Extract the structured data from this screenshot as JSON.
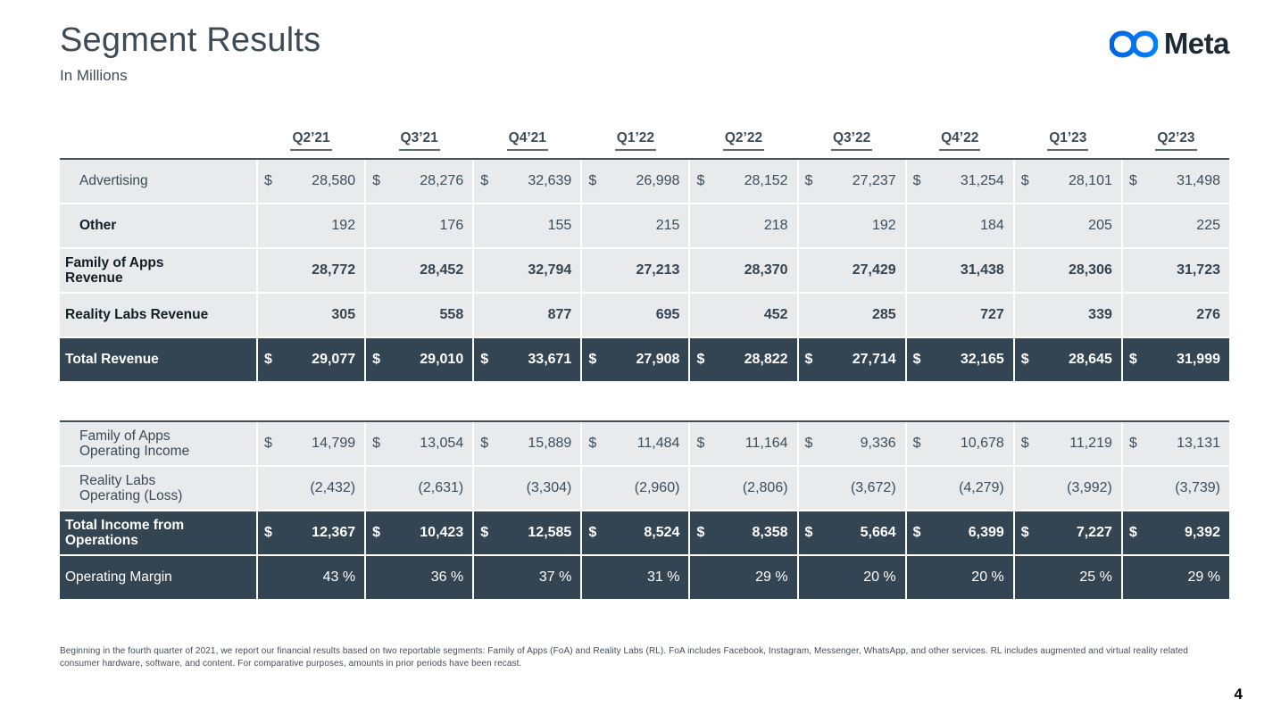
{
  "header": {
    "title": "Segment Results",
    "subtitle": "In Millions",
    "logo_text": "Meta"
  },
  "colors": {
    "dark_row_bg": "#334452",
    "light_row_bg": "#e8eaec",
    "slate_text": "#3c4b57",
    "logo_blue_start": "#0064e0",
    "logo_blue_end": "#0082fb",
    "wordmark": "#1c2b33"
  },
  "table": {
    "dollar_sign": "$",
    "quarters": [
      "Q2’21",
      "Q3’21",
      "Q4’21",
      "Q1’22",
      "Q2’22",
      "Q3’22",
      "Q4’22",
      "Q1’23",
      "Q2’23"
    ],
    "sections": [
      {
        "rows": [
          {
            "label": "Advertising",
            "style": "light",
            "indent": true,
            "label_bold": false,
            "values_bold": false,
            "dollar": true,
            "values": [
              "28,580",
              "28,276",
              "32,639",
              "26,998",
              "28,152",
              "27,237",
              "31,254",
              "28,101",
              "31,498"
            ]
          },
          {
            "label": "Other",
            "style": "light",
            "indent": true,
            "label_bold": true,
            "values_bold": false,
            "dollar": false,
            "values": [
              "192",
              "176",
              "155",
              "215",
              "218",
              "192",
              "184",
              "205",
              "225"
            ]
          },
          {
            "label": "Family of Apps\nRevenue",
            "style": "light",
            "indent": false,
            "label_bold": true,
            "values_bold": true,
            "dollar": false,
            "values": [
              "28,772",
              "28,452",
              "32,794",
              "27,213",
              "28,370",
              "27,429",
              "31,438",
              "28,306",
              "31,723"
            ]
          },
          {
            "label": "Reality Labs Revenue",
            "style": "light",
            "indent": false,
            "label_bold": true,
            "values_bold": true,
            "dollar": false,
            "values": [
              "305",
              "558",
              "877",
              "695",
              "452",
              "285",
              "727",
              "339",
              "276"
            ]
          },
          {
            "label": "Total Revenue",
            "style": "dark",
            "indent": false,
            "label_bold": true,
            "values_bold": true,
            "dollar": true,
            "values": [
              "29,077",
              "29,010",
              "33,671",
              "27,908",
              "28,822",
              "27,714",
              "32,165",
              "28,645",
              "31,999"
            ]
          }
        ]
      },
      {
        "rows": [
          {
            "label": "Family of Apps\nOperating Income",
            "style": "light",
            "indent": true,
            "label_bold": false,
            "values_bold": false,
            "dollar": true,
            "values": [
              "14,799",
              "13,054",
              "15,889",
              "11,484",
              "11,164",
              "9,336",
              "10,678",
              "11,219",
              "13,131"
            ]
          },
          {
            "label": "Reality Labs\nOperating (Loss)",
            "style": "light",
            "indent": true,
            "label_bold": false,
            "values_bold": false,
            "dollar": false,
            "values": [
              "(2,432)",
              "(2,631)",
              "(3,304)",
              "(2,960)",
              "(2,806)",
              "(3,672)",
              "(4,279)",
              "(3,992)",
              "(3,739)"
            ]
          },
          {
            "label": "Total Income from\nOperations",
            "style": "dark",
            "indent": false,
            "label_bold": true,
            "values_bold": true,
            "dollar": true,
            "values": [
              "12,367",
              "10,423",
              "12,585",
              "8,524",
              "8,358",
              "5,664",
              "6,399",
              "7,227",
              "9,392"
            ]
          },
          {
            "label": "Operating Margin",
            "style": "dark",
            "indent": false,
            "label_bold": false,
            "values_bold": false,
            "dollar": false,
            "values": [
              "43 %",
              "36 %",
              "37 %",
              "31 %",
              "29 %",
              "20 %",
              "20 %",
              "25 %",
              "29 %"
            ]
          }
        ]
      }
    ]
  },
  "footnote": "Beginning in the fourth quarter of 2021, we report our financial results based on two reportable segments: Family of Apps (FoA) and Reality Labs (RL). FoA includes Facebook, Instagram, Messenger, WhatsApp, and other services. RL includes augmented and virtual reality related consumer hardware, software, and content. For comparative purposes, amounts in prior periods have been recast.",
  "page_number": "4"
}
